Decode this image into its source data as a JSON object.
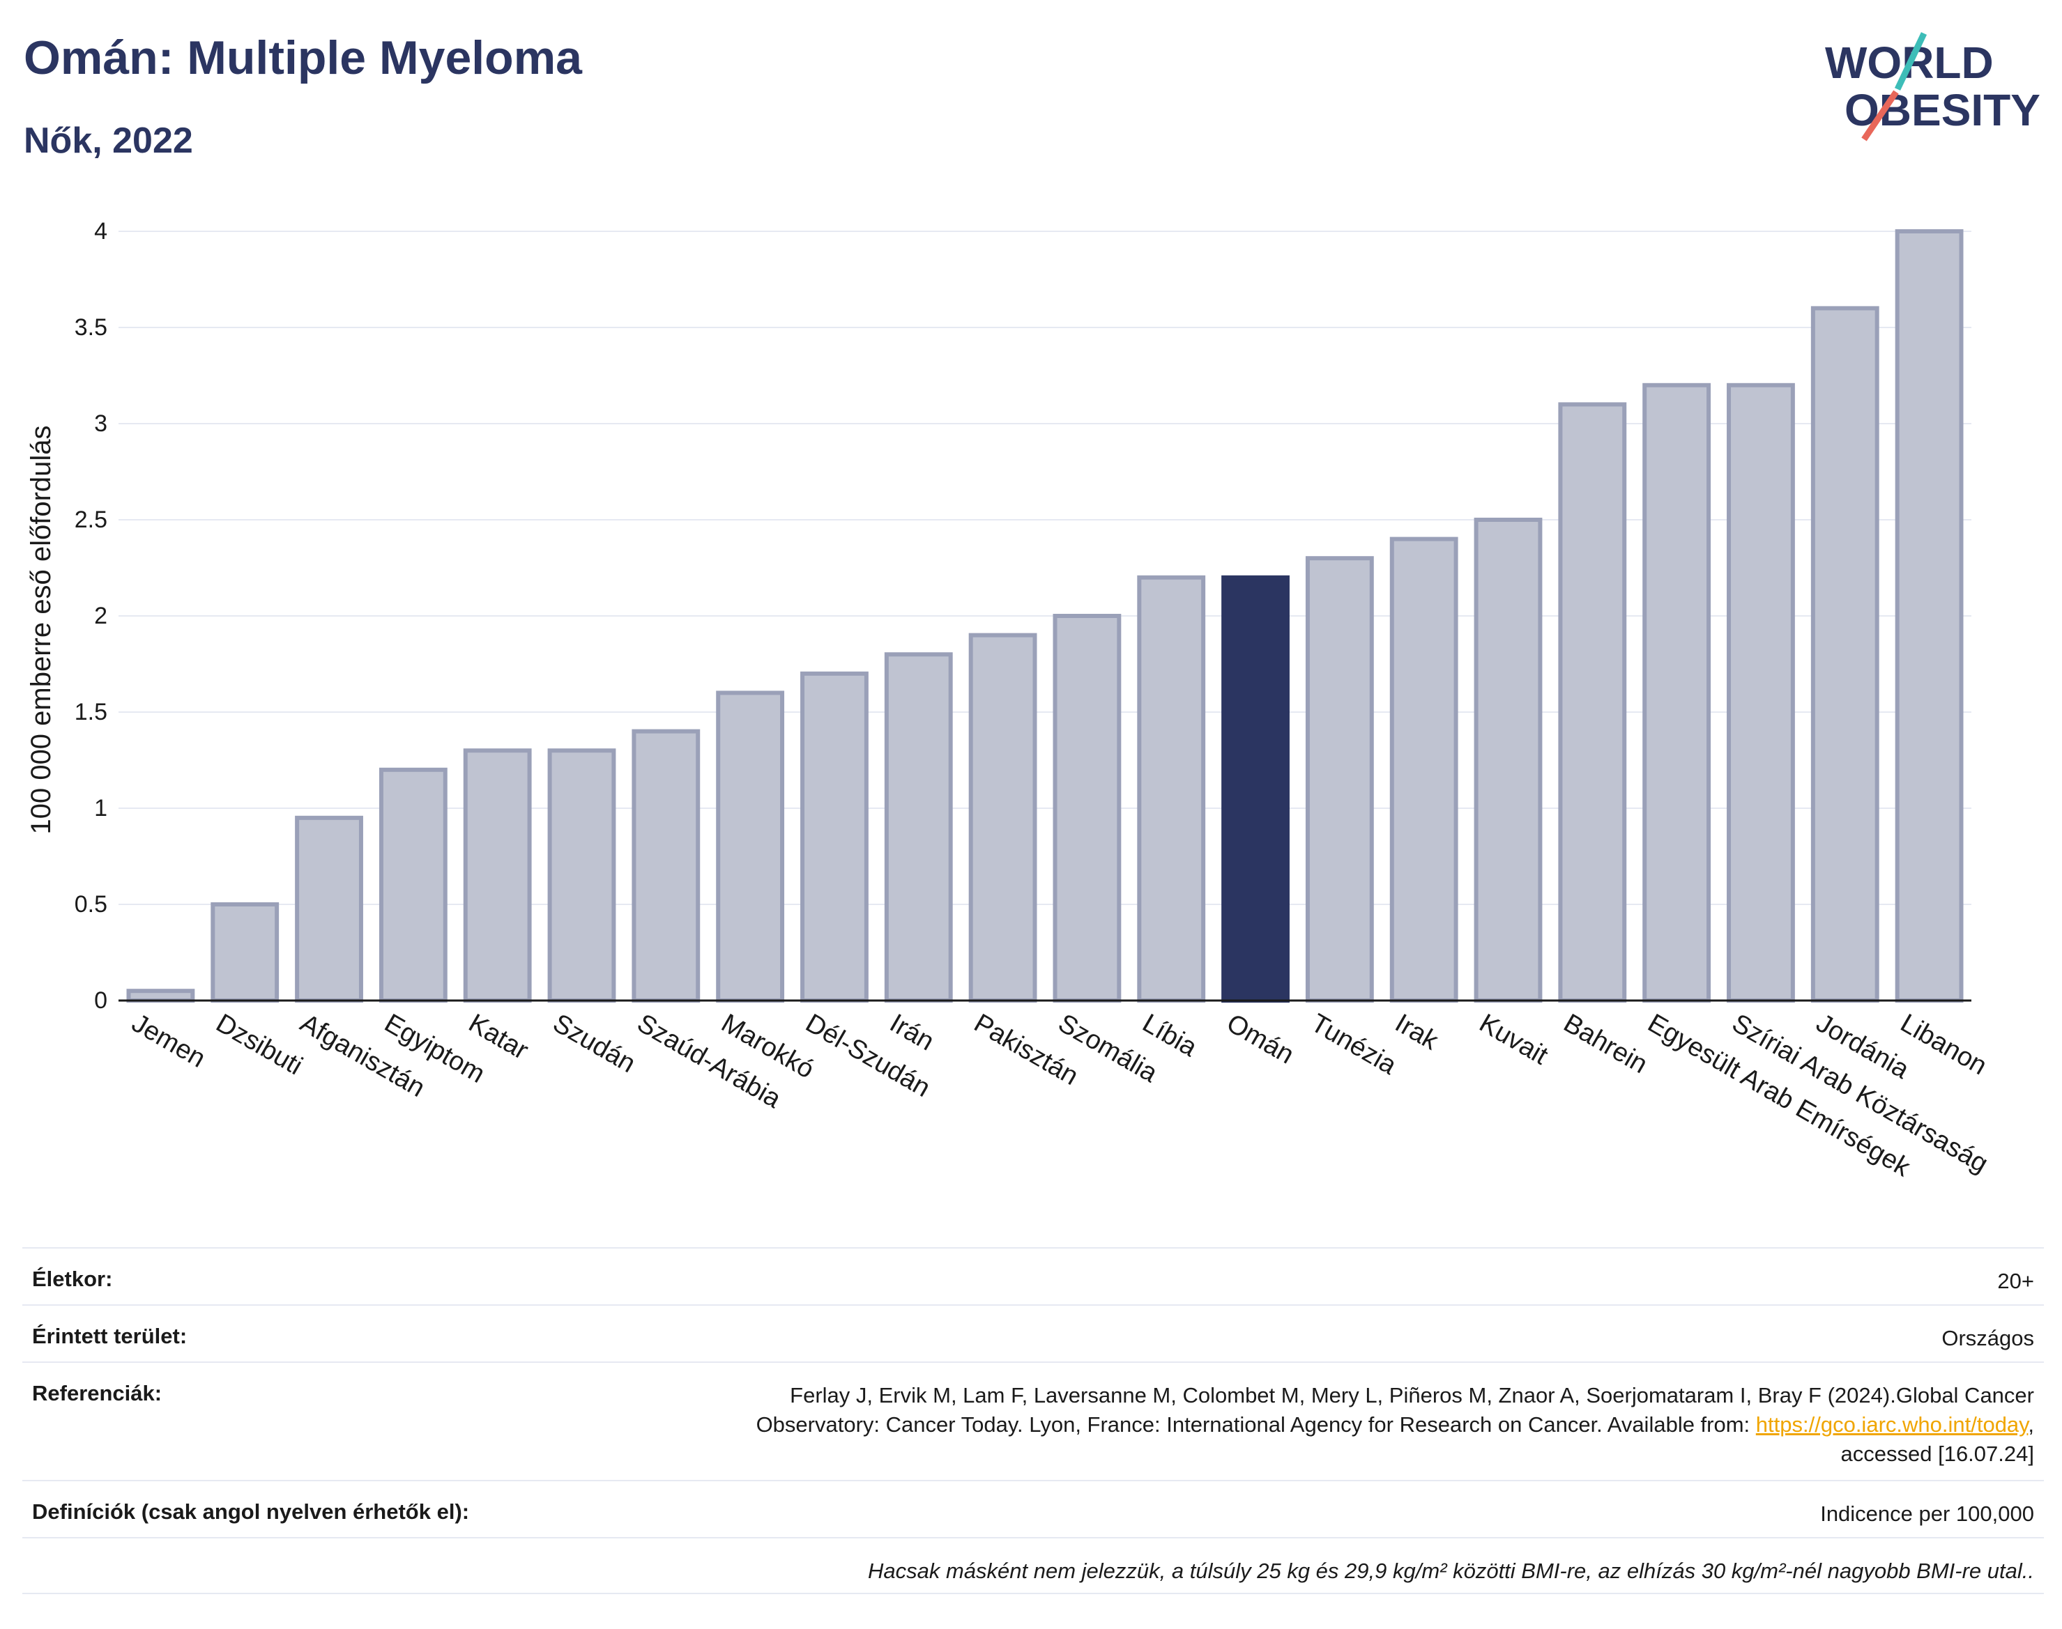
{
  "header": {
    "title": "Omán: Multiple Myeloma",
    "subtitle": "Nők, 2022"
  },
  "logo": {
    "line1": "WORLD",
    "line2": "OBESITY",
    "name": "world-obesity-logo"
  },
  "colors": {
    "highlight": "#2b3561",
    "bar": "#bfc3d1",
    "bar_edge": "#9aa0b8",
    "grid": "#e6e9f2",
    "text": "#2b3561"
  },
  "chart_data": {
    "type": "bar",
    "ylabel": "100 000 emberre eső előfordulás",
    "ylim": [
      0,
      4
    ],
    "yticks": [
      0,
      0.5,
      1,
      1.5,
      2,
      2.5,
      3,
      3.5,
      4
    ],
    "ytick_labels": [
      "0",
      "0.5",
      "1",
      "1.5",
      "2",
      "2.5",
      "3",
      "3.5",
      "4"
    ],
    "grid": true,
    "highlight": "Omán",
    "categories": [
      "Jemen",
      "Dzsibuti",
      "Afganisztán",
      "Egyiptom",
      "Katar",
      "Szudán",
      "Szaúd-Arábia",
      "Marokkó",
      "Dél-Szudán",
      "Irán",
      "Pakisztán",
      "Szomália",
      "Líbia",
      "Omán",
      "Tunézia",
      "Irak",
      "Kuvait",
      "Bahrein",
      "Egyesült Arab Emírségek",
      "Szíriai Arab Köztársaság",
      "Jordánia",
      "Libanon"
    ],
    "values": [
      0.05,
      0.5,
      0.95,
      1.2,
      1.3,
      1.3,
      1.4,
      1.6,
      1.7,
      1.8,
      1.9,
      2.0,
      2.2,
      2.2,
      2.3,
      2.4,
      2.5,
      3.1,
      3.2,
      3.2,
      3.6,
      4.0
    ]
  },
  "table": {
    "age": {
      "label": "Életkor:",
      "value": "20+"
    },
    "area": {
      "label": "Érintett terület:",
      "value": "Országos"
    },
    "refs": {
      "label": "Referenciák:",
      "line1": "Ferlay J, Ervik M, Lam F, Laversanne M, Colombet M, Mery L, Piñeros M, Znaor A, Soerjomataram I, Bray F (2024).Global Cancer",
      "line2_pre": "Observatory: Cancer Today. Lyon, France: International Agency for Research on Cancer. Available from: ",
      "link": "https://gco.iarc.who.int/today",
      "line2_post": ",",
      "line3": "accessed [16.07.24]"
    },
    "defs": {
      "label": "Definíciók (csak angol nyelven érhetők el):",
      "value": "Indicence per 100,000"
    },
    "note": "Hacsak másként nem jelezzük, a túlsúly 25 kg és 29,9 kg/m² közötti BMI-re, az elhízás 30 kg/m²-nél nagyobb BMI-re utal.."
  }
}
